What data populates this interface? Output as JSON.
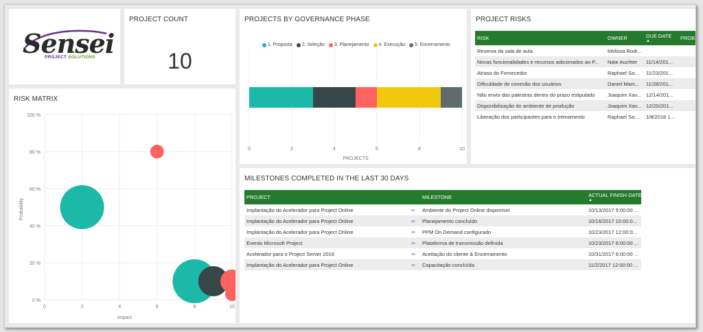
{
  "logo": {
    "word": "Sensei",
    "sub_a": "PROJECT ",
    "sub_b": "SOLUTIONS"
  },
  "project_count": {
    "title": "PROJECT COUNT",
    "value": "10"
  },
  "colors": {
    "header_green": "#257a2e",
    "teal": "#1cb8a8",
    "dark": "#374649",
    "red": "#fd625e",
    "yellow": "#f2c80f",
    "grey": "#5f6b6d"
  },
  "governance": {
    "title": "PROJECTS BY GOVERNANCE PHASE",
    "legend": [
      {
        "label": "1. Proposta",
        "color": "#1cb8a8"
      },
      {
        "label": "2. Seleção",
        "color": "#374649"
      },
      {
        "label": "3. Planejamento",
        "color": "#fd625e"
      },
      {
        "label": "4. Execução",
        "color": "#f2c80f"
      },
      {
        "label": "5. Encerramento",
        "color": "#5f6b6d"
      }
    ],
    "xlabel": "PROJECTS",
    "ticks": [
      "0",
      "2",
      "4",
      "6",
      "8",
      "10"
    ]
  },
  "risk_matrix": {
    "title": "RISK MATRIX",
    "xlabel": "Impact",
    "ylabel": "Probability",
    "xticks": [
      "0",
      "2",
      "4",
      "6",
      "8",
      "10"
    ],
    "yticks": [
      "0 %",
      "20 %",
      "40 %",
      "60 %",
      "80 %",
      "100 %"
    ]
  },
  "chart_data": [
    {
      "type": "bar",
      "orientation": "horizontal-stacked",
      "title": "PROJECTS BY GOVERNANCE PHASE",
      "xlabel": "PROJECTS",
      "xlim": [
        0,
        10
      ],
      "series": [
        {
          "name": "1. Proposta",
          "values": [
            3
          ]
        },
        {
          "name": "2. Seleção",
          "values": [
            2
          ]
        },
        {
          "name": "3. Planejamento",
          "values": [
            1
          ]
        },
        {
          "name": "4. Execução",
          "values": [
            3
          ]
        },
        {
          "name": "5. Encerramento",
          "values": [
            1
          ]
        }
      ]
    },
    {
      "type": "scatter",
      "title": "RISK MATRIX",
      "xlabel": "Impact",
      "ylabel": "Probability",
      "xlim": [
        0,
        10
      ],
      "ylim": [
        0,
        100
      ],
      "points": [
        {
          "x": 6,
          "y": 80,
          "size": 1,
          "color": "#fd625e"
        },
        {
          "x": 2,
          "y": 50,
          "size": 3,
          "color": "#1cb8a8"
        },
        {
          "x": 8,
          "y": 10,
          "size": 3,
          "color": "#1cb8a8"
        },
        {
          "x": 9,
          "y": 10,
          "size": 2,
          "color": "#374649"
        },
        {
          "x": 10,
          "y": 10,
          "size": 1.5,
          "color": "#fd625e"
        },
        {
          "x": 10,
          "y": 3,
          "size": 1,
          "color": "#fd625e"
        }
      ]
    }
  ],
  "risks": {
    "title": "PROJECT RISKS",
    "headers": [
      "RISK",
      "OWNER",
      "DUE DATE",
      "PROB"
    ],
    "rows": [
      [
        "Reserva da sala de aula",
        "Melissa Rodr...",
        ""
      ],
      [
        "Novas funcionalidades e recursos adicionados ao P...",
        "Nate Auchter",
        "11/14/201..."
      ],
      [
        "Atraso do Fornecedor",
        "Raphael Sant...",
        "11/23/201..."
      ],
      [
        "Dificuldade de conexão dos usuários",
        "Daniel Mam...",
        "11/28/201..."
      ],
      [
        "Não envio das palestras dentro do prazo estipulado",
        "Joaquim Xav...",
        "12/14/201..."
      ],
      [
        "Disponibilização do ambiente de produção",
        "Joaquim Xav...",
        "12/20/201..."
      ],
      [
        "Liberação dos participantes para o treinamento",
        "Raphael Sant...",
        "1/8/2018 1..."
      ]
    ]
  },
  "milestones": {
    "title": "MILESTONES COMPLETED IN THE LAST 30 DAYS",
    "headers": [
      "PROJECT",
      "MILESTONE",
      "ACTUAL FINISH DATE"
    ],
    "rows": [
      [
        "Implantação do Acelerador para Project Online",
        "Ambiente do Project Online disponível",
        "10/13/2017 5:00:00 ..."
      ],
      [
        "Implantação do Acelerador para Project Online",
        "Planejamento concluído",
        "10/16/2017 10:00:0..."
      ],
      [
        "Implantação do Acelerador para Project Online",
        "PPM On Demand configurado",
        "10/23/2017 12:00:0..."
      ],
      [
        "Evento Microsoft Project",
        "Plataforma de transmissão definida",
        "10/23/2017 6:00:00 ..."
      ],
      [
        "Acelerador para o Project Server 2016",
        "Aceitação do cliente & Encerramento",
        "10/31/2017 6:00:00 ..."
      ],
      [
        "Implantação do Acelerador para Project Online",
        "Capacitação concluída",
        "11/2/2017 12:00:00 ..."
      ]
    ]
  }
}
